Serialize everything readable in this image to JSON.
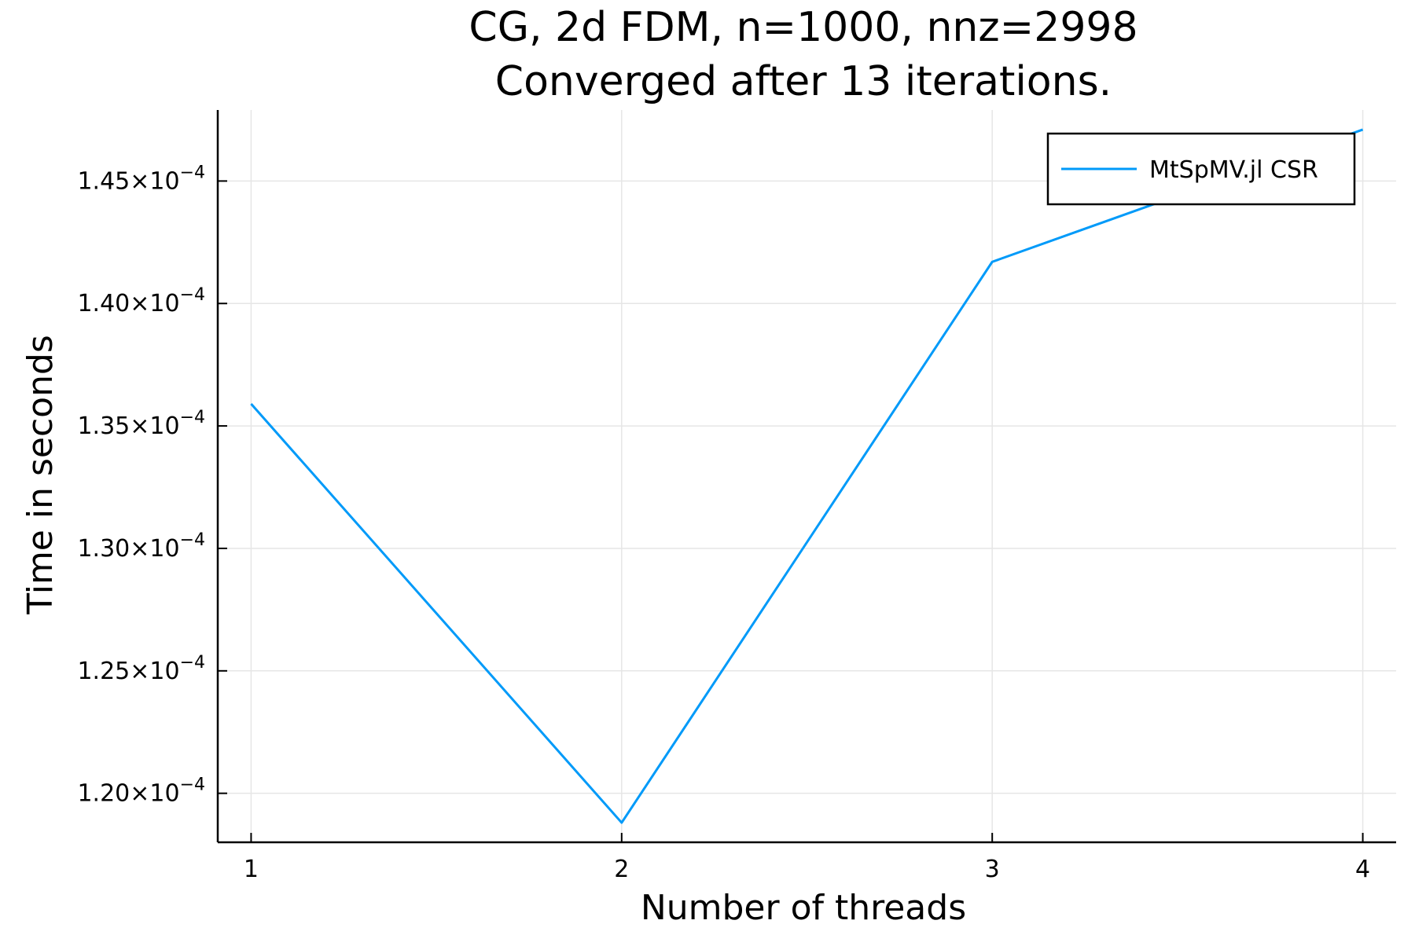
{
  "chart_data": {
    "type": "line",
    "title": "CG, 2d FDM, n=1000, nnz=2998",
    "subtitle": "Converged after 13 iterations.",
    "xlabel": "Number of threads",
    "ylabel": "Time in seconds",
    "x": [
      1,
      2,
      3,
      4
    ],
    "xticks": [
      1,
      2,
      3,
      4
    ],
    "xlim": [
      0.91,
      4.09
    ],
    "ylim": [
      0.000118,
      0.0001479
    ],
    "yticks": [
      {
        "value": 0.00012,
        "mantissa": "1.20",
        "times": "×",
        "base": "10",
        "exp": "−4"
      },
      {
        "value": 0.000125,
        "mantissa": "1.25",
        "times": "×",
        "base": "10",
        "exp": "−4"
      },
      {
        "value": 0.00013,
        "mantissa": "1.30",
        "times": "×",
        "base": "10",
        "exp": "−4"
      },
      {
        "value": 0.000135,
        "mantissa": "1.35",
        "times": "×",
        "base": "10",
        "exp": "−4"
      },
      {
        "value": 0.00014,
        "mantissa": "1.40",
        "times": "×",
        "base": "10",
        "exp": "−4"
      },
      {
        "value": 0.000145,
        "mantissa": "1.45",
        "times": "×",
        "base": "10",
        "exp": "−4"
      }
    ],
    "series": [
      {
        "name": "MtSpMV.jl CSR",
        "color": "#009af9",
        "values": [
          0.0001359,
          0.0001188,
          0.0001417,
          0.0001471
        ]
      }
    ],
    "grid": true,
    "legend_position": "top-right"
  }
}
